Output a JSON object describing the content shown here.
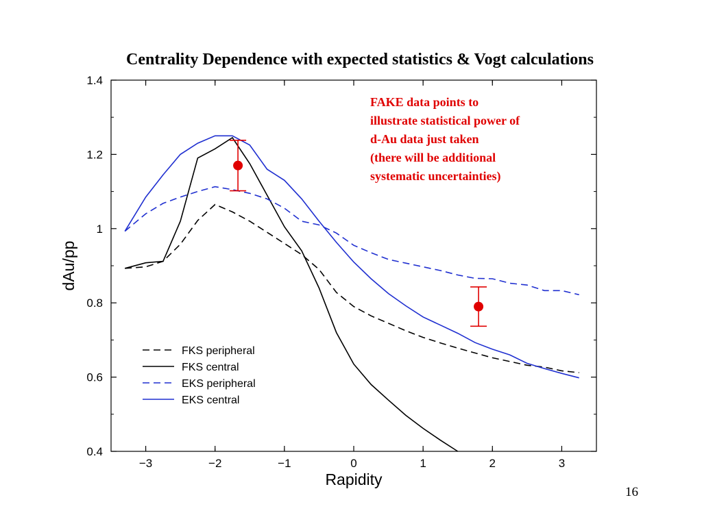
{
  "slide": {
    "title": "Centrality Dependence with expected statistics & Vogt calculations",
    "page_number": "16"
  },
  "chart_data": {
    "type": "line",
    "title": "",
    "xlabel": "Rapidity",
    "ylabel": "dAu/pp",
    "xlim": [
      -3.5,
      3.5
    ],
    "ylim": [
      0.4,
      1.4
    ],
    "x_ticks": [
      -3,
      -2,
      -1,
      0,
      1,
      2,
      3
    ],
    "x_tick_labels": [
      "−3",
      "−2",
      "−1",
      "0",
      "1",
      "2",
      "3"
    ],
    "y_ticks": [
      0.4,
      0.6,
      0.8,
      1.0,
      1.2,
      1.4
    ],
    "y_tick_labels": [
      "0.4",
      "0.6",
      "0.8",
      "1",
      "1.2",
      "1.4"
    ],
    "grid": false,
    "legend_position": "bottom-left",
    "series": [
      {
        "name": "FKS peripheral",
        "color": "#000000",
        "style": "dashed",
        "x": [
          -3.3,
          -3.0,
          -2.75,
          -2.5,
          -2.25,
          -2.0,
          -1.75,
          -1.5,
          -1.25,
          -1.0,
          -0.75,
          -0.5,
          -0.25,
          0.0,
          0.25,
          0.5,
          0.75,
          1.0,
          1.25,
          1.5,
          1.75,
          2.0,
          2.25,
          2.5,
          2.75,
          3.0,
          3.25
        ],
        "y": [
          0.893,
          0.897,
          0.912,
          0.958,
          1.022,
          1.065,
          1.045,
          1.02,
          0.99,
          0.96,
          0.93,
          0.89,
          0.828,
          0.79,
          0.765,
          0.745,
          0.725,
          0.707,
          0.692,
          0.678,
          0.665,
          0.652,
          0.642,
          0.632,
          0.627,
          0.617,
          0.612
        ]
      },
      {
        "name": "FKS central",
        "color": "#000000",
        "style": "solid",
        "x": [
          -3.3,
          -3.0,
          -2.75,
          -2.5,
          -2.25,
          -2.0,
          -1.75,
          -1.5,
          -1.25,
          -1.0,
          -0.75,
          -0.5,
          -0.25,
          0.0,
          0.25,
          0.5,
          0.75,
          1.0,
          1.25,
          1.5
        ],
        "y": [
          0.893,
          0.908,
          0.912,
          1.02,
          1.19,
          1.215,
          1.245,
          1.175,
          1.09,
          1.005,
          0.94,
          0.84,
          0.72,
          0.635,
          0.58,
          0.538,
          0.497,
          0.462,
          0.43,
          0.4
        ]
      },
      {
        "name": "EKS peripheral",
        "color": "#1f2fd0",
        "style": "dashed",
        "x": [
          -3.3,
          -3.0,
          -2.75,
          -2.5,
          -2.25,
          -2.0,
          -1.75,
          -1.5,
          -1.25,
          -1.0,
          -0.75,
          -0.5,
          -0.25,
          0.0,
          0.25,
          0.5,
          0.75,
          1.0,
          1.25,
          1.5,
          1.75,
          2.0,
          2.25,
          2.5,
          2.75,
          3.0,
          3.25
        ],
        "y": [
          0.993,
          1.04,
          1.068,
          1.085,
          1.1,
          1.113,
          1.105,
          1.095,
          1.08,
          1.055,
          1.02,
          1.01,
          0.988,
          0.955,
          0.935,
          0.917,
          0.907,
          0.897,
          0.887,
          0.875,
          0.866,
          0.865,
          0.853,
          0.848,
          0.833,
          0.833,
          0.822
        ]
      },
      {
        "name": "EKS central",
        "color": "#1f2fd0",
        "style": "solid",
        "x": [
          -3.3,
          -3.0,
          -2.75,
          -2.5,
          -2.25,
          -2.0,
          -1.75,
          -1.5,
          -1.25,
          -1.0,
          -0.75,
          -0.5,
          -0.25,
          0.0,
          0.25,
          0.5,
          0.75,
          1.0,
          1.25,
          1.5,
          1.75,
          2.0,
          2.25,
          2.5,
          2.75,
          3.0,
          3.25
        ],
        "y": [
          0.993,
          1.085,
          1.145,
          1.2,
          1.23,
          1.25,
          1.25,
          1.225,
          1.16,
          1.13,
          1.08,
          1.02,
          0.963,
          0.91,
          0.865,
          0.825,
          0.792,
          0.762,
          0.74,
          0.718,
          0.693,
          0.675,
          0.66,
          0.637,
          0.623,
          0.61,
          0.598
        ]
      }
    ],
    "points": [
      {
        "x": -1.67,
        "y": 1.17,
        "y_low": 1.102,
        "y_high": 1.238,
        "color": "#e00000"
      },
      {
        "x": 1.8,
        "y": 0.79,
        "y_low": 0.737,
        "y_high": 0.843,
        "color": "#e00000"
      }
    ],
    "annotation": {
      "color": "#e00000",
      "lines": [
        "FAKE data points to",
        "illustrate statistical power of",
        "d-Au data just taken",
        "(there will be additional",
        "systematic uncertainties)"
      ]
    }
  }
}
